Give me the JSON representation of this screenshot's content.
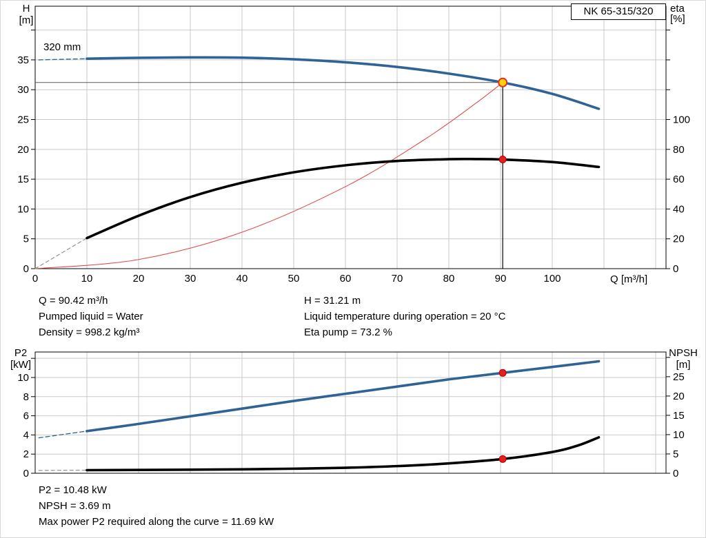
{
  "title_box": {
    "label": "NK 65-315/320"
  },
  "top_info": {
    "col1": [
      "Q = 90.42 m³/h",
      "Pumped liquid = Water",
      "Density = 998.2 kg/m³"
    ],
    "col2": [
      "H = 31.21 m",
      "Liquid temperature during operation = 20 °C",
      "Eta pump = 73.2 %"
    ]
  },
  "bottom_info": [
    "P2 = 10.48 kW",
    "NPSH = 3.69 m",
    "Max power P2 required along the curve = 11.69 kW"
  ],
  "colors": {
    "curve_blue": "#2f6395",
    "curve_black": "#000000",
    "system_red": "#e04848",
    "grid": "#c9c9c9",
    "duty_line": "#5a5a5a",
    "marker_yellow": "#ffd400",
    "marker_red": "#e31f1f"
  },
  "chart_data": [
    {
      "id": "qh-chart",
      "type": "line",
      "title": "NK 65-315/320",
      "impeller_label": "320 mm",
      "x": {
        "name": "Q",
        "unit": "[m³/h]",
        "label": "Q [m³/h]",
        "min": 0,
        "max": 122,
        "grid_step": 10,
        "tick_labels": [
          0,
          10,
          20,
          30,
          40,
          50,
          60,
          70,
          80,
          90,
          100
        ]
      },
      "y_left": {
        "name": "H",
        "unit": "[m]",
        "min": 0,
        "max": 44,
        "grid_step": 5,
        "tick_step": 5,
        "tick_max": 40,
        "tick_labels": [
          0,
          5,
          10,
          15,
          20,
          25,
          30,
          35
        ]
      },
      "y_right": {
        "name": "eta",
        "unit": "[%]",
        "min": 0,
        "max": 176,
        "tick_step": 20,
        "tick_max": 160,
        "tick_labels": [
          0,
          20,
          40,
          60,
          80,
          100
        ]
      },
      "series": [
        {
          "name": "head-lead-in",
          "axis": "left",
          "color": "#2f6395",
          "width": 1.3,
          "dash": "6 4",
          "points": [
            [
              0.7,
              35.0
            ],
            [
              10,
              35.2
            ]
          ]
        },
        {
          "name": "head",
          "axis": "left",
          "color": "#2f6395",
          "width": 3.6,
          "dash": null,
          "points": [
            [
              10,
              35.2
            ],
            [
              20,
              35.35
            ],
            [
              30,
              35.42
            ],
            [
              40,
              35.38
            ],
            [
              50,
              35.1
            ],
            [
              60,
              34.6
            ],
            [
              70,
              33.82
            ],
            [
              80,
              32.7
            ],
            [
              90.42,
              31.21
            ],
            [
              100,
              29.3
            ],
            [
              109,
              26.8
            ]
          ]
        },
        {
          "name": "system-curve",
          "axis": "left",
          "color": "#e04848",
          "width": 1.1,
          "dash": null,
          "points": [
            [
              0,
              0
            ],
            [
              20,
              1.53
            ],
            [
              40,
              6.11
            ],
            [
              60,
              13.75
            ],
            [
              75,
              21.48
            ],
            [
              85,
              27.59
            ],
            [
              90.42,
              31.21
            ]
          ]
        },
        {
          "name": "efficiency-lead-in",
          "axis": "right",
          "color": "#8f8f8f",
          "width": 1.2,
          "dash": "5 4",
          "points": [
            [
              0,
              0
            ],
            [
              10,
              20.5
            ]
          ]
        },
        {
          "name": "efficiency",
          "axis": "right",
          "color": "#000000",
          "width": 3.6,
          "dash": null,
          "points": [
            [
              10,
              20.5
            ],
            [
              20,
              35.5
            ],
            [
              30,
              48
            ],
            [
              40,
              57.6
            ],
            [
              50,
              64.6
            ],
            [
              60,
              69.3
            ],
            [
              70,
              72.2
            ],
            [
              80,
              73.4
            ],
            [
              85,
              73.5
            ],
            [
              90.42,
              73.2
            ],
            [
              100,
              71.5
            ],
            [
              109,
              68.2
            ]
          ]
        }
      ],
      "duty": {
        "q": 90.42,
        "value": 31.21,
        "axis": "left"
      },
      "markers": [
        {
          "name": "duty-point-head",
          "axis": "left",
          "q": 90.42,
          "value": 31.21,
          "fill": "#ffd400",
          "stroke": "#e03030",
          "stroke_width": 2,
          "r": 6
        },
        {
          "name": "duty-point-efficiency",
          "axis": "right",
          "q": 90.42,
          "value": 73.2,
          "fill": "#e31f1f",
          "stroke": "#b00000",
          "stroke_width": 1,
          "r": 5
        }
      ]
    },
    {
      "id": "p2-npsh-chart",
      "type": "line",
      "x": {
        "name": "Q",
        "unit": "[m³/h]",
        "label": "",
        "min": 0,
        "max": 122,
        "grid_step": 10,
        "tick_labels": []
      },
      "y_left": {
        "name": "P2",
        "unit": "[kW]",
        "min": 0,
        "max": 12.66,
        "grid_step": 2,
        "tick_step": 2,
        "tick_max": 12,
        "tick_labels": [
          0,
          2,
          4,
          6,
          8,
          10
        ]
      },
      "y_right": {
        "name": "NPSH",
        "unit": "[m]",
        "min": 0,
        "max": 31.4,
        "tick_step": 5,
        "tick_max": 30,
        "tick_labels": [
          0,
          5,
          10,
          15,
          20,
          25
        ]
      },
      "series": [
        {
          "name": "p2-lead-in",
          "axis": "left",
          "color": "#2f6395",
          "width": 1.3,
          "dash": "6 4",
          "points": [
            [
              0.7,
              3.7
            ],
            [
              10,
              4.4
            ]
          ]
        },
        {
          "name": "p2",
          "axis": "left",
          "color": "#2f6395",
          "width": 3.6,
          "dash": null,
          "points": [
            [
              10,
              4.4
            ],
            [
              20,
              5.15
            ],
            [
              30,
              5.95
            ],
            [
              40,
              6.75
            ],
            [
              50,
              7.55
            ],
            [
              60,
              8.3
            ],
            [
              70,
              9.05
            ],
            [
              80,
              9.8
            ],
            [
              90.42,
              10.48
            ],
            [
              100,
              11.1
            ],
            [
              109,
              11.69
            ]
          ]
        },
        {
          "name": "npsh-lead-in",
          "axis": "right",
          "color": "#8f8f8f",
          "width": 1.2,
          "dash": "5 4",
          "points": [
            [
              0.7,
              0.72
            ],
            [
              10,
              0.8
            ]
          ]
        },
        {
          "name": "npsh",
          "axis": "right",
          "color": "#000000",
          "width": 3.6,
          "dash": null,
          "points": [
            [
              10,
              0.8
            ],
            [
              20,
              0.85
            ],
            [
              30,
              0.92
            ],
            [
              40,
              1.02
            ],
            [
              50,
              1.18
            ],
            [
              60,
              1.42
            ],
            [
              70,
              1.85
            ],
            [
              80,
              2.55
            ],
            [
              90.42,
              3.69
            ],
            [
              100,
              5.5
            ],
            [
              105,
              7.2
            ],
            [
              109,
              9.3
            ]
          ]
        }
      ],
      "duty": null,
      "markers": [
        {
          "name": "duty-point-p2",
          "axis": "left",
          "q": 90.42,
          "value": 10.48,
          "fill": "#e31f1f",
          "stroke": "#b00000",
          "stroke_width": 1,
          "r": 5
        },
        {
          "name": "duty-point-npsh",
          "axis": "right",
          "q": 90.42,
          "value": 3.69,
          "fill": "#e31f1f",
          "stroke": "#b00000",
          "stroke_width": 1,
          "r": 5
        }
      ]
    }
  ]
}
